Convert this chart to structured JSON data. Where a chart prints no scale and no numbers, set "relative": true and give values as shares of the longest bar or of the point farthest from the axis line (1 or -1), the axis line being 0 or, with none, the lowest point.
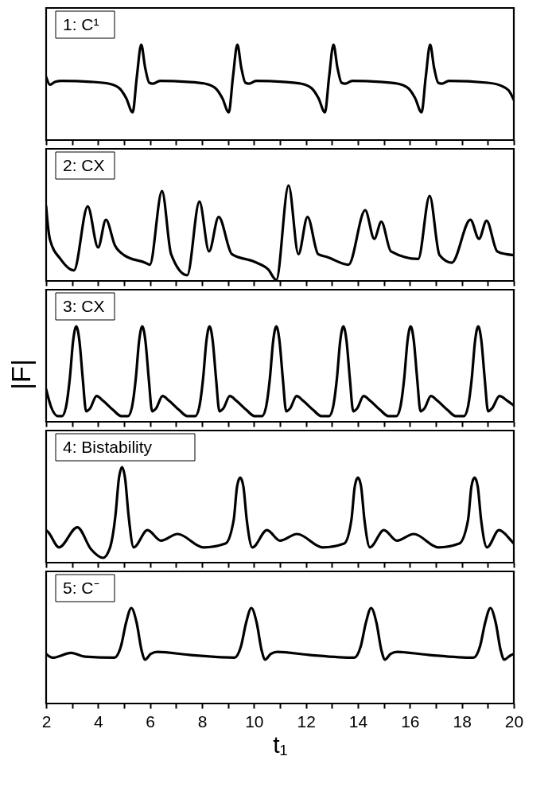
{
  "chart_data": [
    {
      "type": "line",
      "relative": true,
      "color": "#000000",
      "line_style": "solid",
      "marker": "none",
      "tick_labels": false,
      "annotations": [
        "1: C¹"
      ],
      "xlim": [
        2,
        20
      ],
      "xticks": [
        2,
        {
          "value": 3,
          "label": null
        },
        4,
        {
          "value": 5,
          "label": null
        },
        6,
        {
          "value": 7,
          "label": null
        },
        8,
        {
          "value": 9,
          "label": null
        },
        10,
        {
          "value": 11,
          "label": null
        },
        12,
        {
          "value": 13,
          "label": null
        },
        14,
        {
          "value": 15,
          "label": null
        },
        16,
        {
          "value": 17,
          "label": null
        },
        18,
        {
          "value": 19,
          "label": null
        },
        20
      ],
      "x": [
        2.0,
        2.15,
        2.35,
        2.6,
        3.73,
        4.43,
        4.83,
        5.08,
        5.33,
        5.49,
        5.66,
        5.81,
        5.97,
        6.11,
        6.38,
        7.43,
        8.13,
        8.53,
        8.78,
        9.03,
        9.19,
        9.36,
        9.51,
        9.67,
        9.81,
        10.08,
        11.13,
        11.83,
        12.23,
        12.48,
        12.73,
        12.89,
        13.06,
        13.21,
        13.37,
        13.51,
        13.78,
        14.85,
        15.55,
        15.95,
        16.2,
        16.45,
        16.61,
        16.78,
        16.93,
        17.09,
        17.23,
        17.5,
        19.0,
        19.5,
        19.8,
        20.0
      ],
      "values": [
        0.66,
        0.58,
        0.61,
        0.62,
        0.61,
        0.59,
        0.54,
        0.44,
        0.29,
        0.66,
        1,
        0.76,
        0.6,
        0.59,
        0.62,
        0.61,
        0.59,
        0.54,
        0.44,
        0.29,
        0.66,
        1,
        0.76,
        0.6,
        0.59,
        0.62,
        0.61,
        0.59,
        0.54,
        0.44,
        0.29,
        0.66,
        1,
        0.76,
        0.6,
        0.59,
        0.62,
        0.61,
        0.59,
        0.54,
        0.44,
        0.29,
        0.66,
        1,
        0.76,
        0.6,
        0.59,
        0.62,
        0.6,
        0.57,
        0.52,
        0.42
      ]
    },
    {
      "type": "line",
      "relative": true,
      "color": "#000000",
      "line_style": "solid",
      "marker": "none",
      "tick_labels": false,
      "annotations": [
        "2: CX"
      ],
      "xlim": [
        2,
        20
      ],
      "xticks": [
        2,
        {
          "value": 3,
          "label": null
        },
        4,
        {
          "value": 5,
          "label": null
        },
        6,
        {
          "value": 7,
          "label": null
        },
        8,
        {
          "value": 9,
          "label": null
        },
        10,
        {
          "value": 11,
          "label": null
        },
        12,
        {
          "value": 13,
          "label": null
        },
        14,
        {
          "value": 15,
          "label": null
        },
        16,
        {
          "value": 17,
          "label": null
        },
        18,
        {
          "value": 19,
          "label": null
        },
        20
      ],
      "x": [
        2.0,
        2.08,
        2.15,
        2.55,
        3.07,
        3.6,
        4.0,
        4.3,
        4.65,
        5.0,
        5.82,
        5.99,
        6.46,
        6.81,
        7.43,
        7.9,
        8.27,
        8.64,
        9.15,
        10.02,
        10.55,
        10.86,
        11.33,
        11.71,
        12.06,
        12.47,
        12.82,
        13.64,
        14.28,
        14.63,
        14.9,
        15.27,
        16.32,
        16.76,
        17.14,
        17.61,
        18.33,
        18.66,
        18.95,
        19.36,
        19.71,
        20.0
      ],
      "values": [
        0.78,
        0.55,
        0.43,
        0.23,
        0.11,
        0.78,
        0.35,
        0.64,
        0.37,
        0.27,
        0.19,
        0.17,
        0.94,
        0.28,
        0.06,
        0.83,
        0.31,
        0.67,
        0.28,
        0.2,
        0.12,
        0.01,
        1,
        0.28,
        0.67,
        0.28,
        0.25,
        0.17,
        0.74,
        0.44,
        0.62,
        0.31,
        0.23,
        0.89,
        0.27,
        0.19,
        0.64,
        0.44,
        0.63,
        0.31,
        0.28,
        0.27
      ]
    },
    {
      "type": "line",
      "relative": true,
      "color": "#000000",
      "line_style": "solid",
      "marker": "none",
      "tick_labels": false,
      "ylabel": "|F|",
      "annotations": [
        "3: CX"
      ],
      "xlim": [
        2,
        20
      ],
      "xticks": [
        2,
        {
          "value": 3,
          "label": null
        },
        4,
        {
          "value": 5,
          "label": null
        },
        6,
        {
          "value": 7,
          "label": null
        },
        8,
        {
          "value": 9,
          "label": null
        },
        10,
        {
          "value": 11,
          "label": null
        },
        12,
        {
          "value": 13,
          "label": null
        },
        14,
        {
          "value": 15,
          "label": null
        },
        16,
        {
          "value": 17,
          "label": null
        },
        18,
        {
          "value": 19,
          "label": null
        },
        20
      ],
      "x": [
        2.0,
        2.2,
        2.45,
        2.61,
        2.76,
        2.91,
        3.04,
        3.16,
        3.28,
        3.41,
        3.54,
        3.69,
        3.94,
        4.19,
        4.59,
        4.89,
        5.15,
        5.3,
        5.45,
        5.58,
        5.7,
        5.82,
        5.95,
        6.08,
        6.23,
        6.48,
        6.73,
        7.13,
        7.43,
        7.74,
        7.89,
        8.04,
        8.17,
        8.29,
        8.41,
        8.54,
        8.67,
        8.82,
        9.07,
        9.32,
        9.72,
        10.02,
        10.31,
        10.46,
        10.61,
        10.74,
        10.86,
        10.98,
        11.11,
        11.24,
        11.39,
        11.64,
        11.89,
        12.29,
        12.59,
        12.89,
        13.04,
        13.19,
        13.32,
        13.44,
        13.56,
        13.69,
        13.82,
        13.97,
        14.22,
        14.47,
        14.87,
        15.17,
        15.48,
        15.63,
        15.78,
        15.91,
        16.03,
        16.15,
        16.28,
        16.41,
        16.56,
        16.81,
        17.06,
        17.46,
        17.76,
        18.08,
        18.23,
        18.38,
        18.51,
        18.63,
        18.75,
        18.88,
        19.01,
        19.16,
        19.45,
        19.75,
        20.0
      ],
      "values": [
        0.34,
        0.15,
        0.06,
        0.06,
        0.15,
        0.45,
        0.85,
        1,
        0.85,
        0.45,
        0.11,
        0.14,
        0.27,
        0.22,
        0.12,
        0.06,
        0.06,
        0.15,
        0.45,
        0.85,
        1,
        0.85,
        0.45,
        0.11,
        0.14,
        0.27,
        0.22,
        0.12,
        0.06,
        0.06,
        0.15,
        0.45,
        0.85,
        1,
        0.85,
        0.45,
        0.11,
        0.14,
        0.27,
        0.22,
        0.12,
        0.06,
        0.06,
        0.15,
        0.45,
        0.85,
        1,
        0.85,
        0.45,
        0.11,
        0.14,
        0.27,
        0.22,
        0.12,
        0.06,
        0.06,
        0.15,
        0.45,
        0.85,
        1,
        0.85,
        0.45,
        0.11,
        0.14,
        0.27,
        0.22,
        0.12,
        0.06,
        0.06,
        0.15,
        0.45,
        0.85,
        1,
        0.85,
        0.45,
        0.11,
        0.14,
        0.27,
        0.22,
        0.12,
        0.06,
        0.06,
        0.15,
        0.45,
        0.85,
        1,
        0.85,
        0.45,
        0.11,
        0.14,
        0.27,
        0.22,
        0.17
      ]
    },
    {
      "type": "line",
      "relative": true,
      "color": "#000000",
      "line_style": "solid",
      "marker": "none",
      "tick_labels": false,
      "annotations": [
        "4: Bistability"
      ],
      "xlim": [
        2,
        20
      ],
      "xticks": [
        2,
        {
          "value": 3,
          "label": null
        },
        4,
        {
          "value": 5,
          "label": null
        },
        6,
        {
          "value": 7,
          "label": null
        },
        8,
        {
          "value": 9,
          "label": null
        },
        10,
        {
          "value": 11,
          "label": null
        },
        12,
        {
          "value": 13,
          "label": null
        },
        14,
        {
          "value": 15,
          "label": null
        },
        16,
        {
          "value": 17,
          "label": null
        },
        18,
        {
          "value": 19,
          "label": null
        },
        20
      ],
      "x": [
        2.0,
        2.08,
        2.5,
        3.2,
        3.73,
        4.19,
        4.45,
        4.67,
        4.8,
        4.92,
        5.04,
        5.17,
        5.37,
        5.9,
        6.42,
        7.06,
        8.06,
        8.9,
        9.22,
        9.35,
        9.47,
        9.59,
        9.72,
        9.94,
        10.5,
        11.0,
        11.66,
        12.65,
        13.47,
        13.75,
        13.88,
        14.0,
        14.12,
        14.25,
        14.46,
        15.0,
        15.5,
        16.15,
        17.1,
        17.9,
        18.24,
        18.37,
        18.49,
        18.61,
        18.74,
        18.97,
        19.43,
        19.9,
        20.0
      ],
      "values": [
        0.34,
        0.32,
        0.16,
        0.37,
        0.14,
        0.05,
        0.15,
        0.5,
        0.88,
        1,
        0.88,
        0.5,
        0.16,
        0.34,
        0.23,
        0.3,
        0.16,
        0.2,
        0.45,
        0.8,
        0.89,
        0.8,
        0.45,
        0.16,
        0.34,
        0.23,
        0.3,
        0.16,
        0.2,
        0.45,
        0.8,
        0.89,
        0.8,
        0.45,
        0.16,
        0.34,
        0.23,
        0.3,
        0.16,
        0.2,
        0.45,
        0.8,
        0.89,
        0.8,
        0.45,
        0.16,
        0.34,
        0.23,
        0.2
      ]
    },
    {
      "type": "line",
      "relative": true,
      "color": "#000000",
      "line_style": "solid",
      "marker": "none",
      "tick_labels": "x",
      "xlabel": "t₁",
      "annotations": [
        "5: C⁻"
      ],
      "xlim": [
        2,
        20
      ],
      "xticks": [
        2,
        {
          "value": 3,
          "label": null
        },
        4,
        {
          "value": 5,
          "label": null
        },
        6,
        {
          "value": 7,
          "label": null
        },
        8,
        {
          "value": 9,
          "label": null
        },
        10,
        {
          "value": 11,
          "label": null
        },
        12,
        {
          "value": 13,
          "label": null
        },
        14,
        {
          "value": 15,
          "label": null
        },
        16,
        {
          "value": 17,
          "label": null
        },
        18,
        {
          "value": 19,
          "label": null
        },
        20
      ],
      "x": [
        2.0,
        2.25,
        2.96,
        3.5,
        4.63,
        4.88,
        5.08,
        5.28,
        5.48,
        5.68,
        5.81,
        6.03,
        6.28,
        7.5,
        9.25,
        9.5,
        9.7,
        9.9,
        10.1,
        10.3,
        10.43,
        10.65,
        10.9,
        12.1,
        13.86,
        14.11,
        14.31,
        14.51,
        14.71,
        14.91,
        15.04,
        15.26,
        15.51,
        16.7,
        18.45,
        18.7,
        18.9,
        19.1,
        19.3,
        19.5,
        19.63,
        19.85,
        20.0
      ],
      "values": [
        0.52,
        0.48,
        0.53,
        0.49,
        0.48,
        0.6,
        0.85,
        1,
        0.85,
        0.55,
        0.46,
        0.52,
        0.54,
        0.51,
        0.48,
        0.6,
        0.85,
        1,
        0.85,
        0.55,
        0.46,
        0.52,
        0.54,
        0.51,
        0.48,
        0.6,
        0.85,
        1,
        0.85,
        0.55,
        0.46,
        0.52,
        0.54,
        0.51,
        0.48,
        0.6,
        0.85,
        1,
        0.85,
        0.55,
        0.46,
        0.5,
        0.52
      ]
    }
  ]
}
